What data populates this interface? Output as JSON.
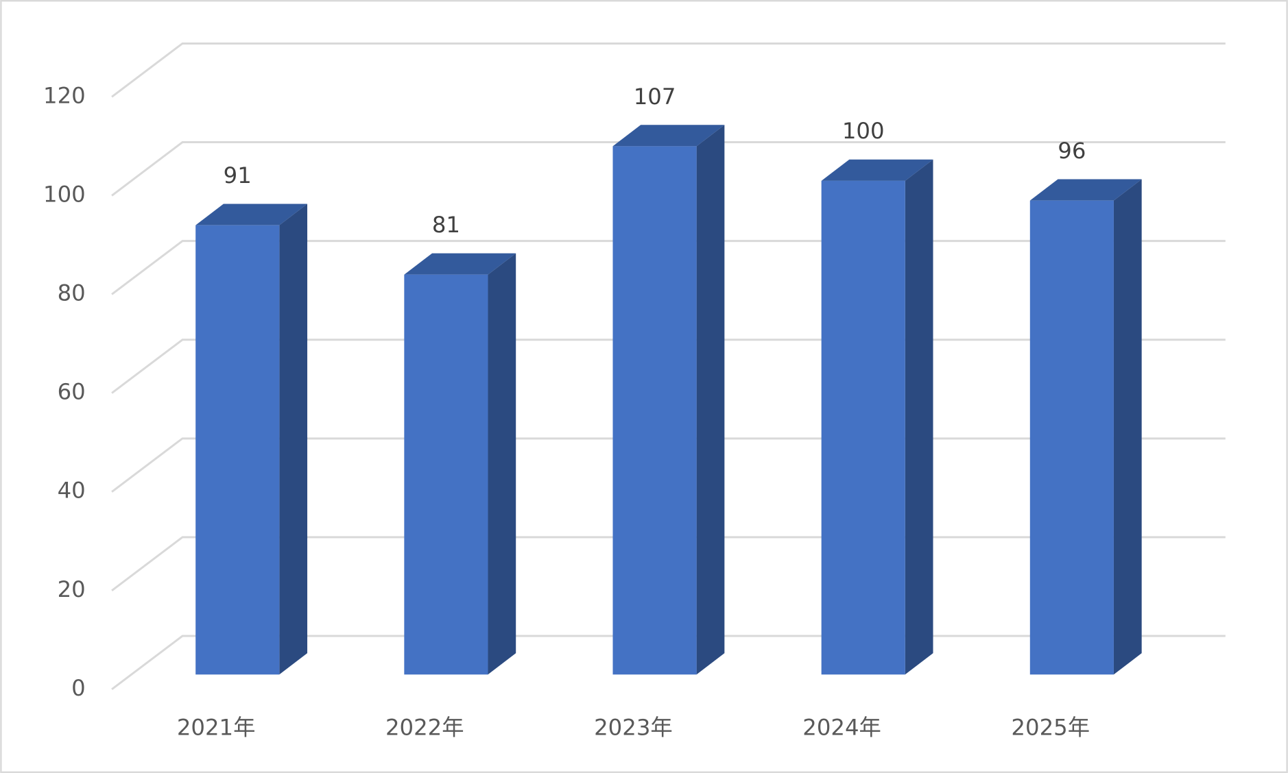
{
  "chart_data": {
    "type": "bar3d",
    "categories": [
      "2021年",
      "2022年",
      "2023年",
      "2024年",
      "2025年"
    ],
    "values": [
      91,
      81,
      107,
      100,
      96
    ],
    "color": "#4472c4",
    "ylim": [
      0,
      120
    ],
    "yticks": [
      0,
      20,
      40,
      60,
      80,
      100,
      120
    ],
    "grid": true
  }
}
